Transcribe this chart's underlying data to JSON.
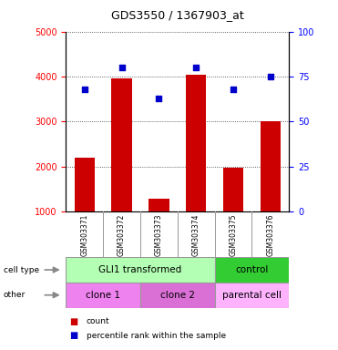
{
  "title": "GDS3550 / 1367903_at",
  "samples": [
    "GSM303371",
    "GSM303372",
    "GSM303373",
    "GSM303374",
    "GSM303375",
    "GSM303376"
  ],
  "counts": [
    2200,
    3950,
    1280,
    4050,
    1980,
    3000
  ],
  "percentile_pct": [
    68,
    80,
    63,
    80,
    68,
    75
  ],
  "ylim_left": [
    1000,
    5000
  ],
  "ylim_right": [
    0,
    100
  ],
  "yticks_left": [
    1000,
    2000,
    3000,
    4000,
    5000
  ],
  "yticks_right": [
    0,
    25,
    50,
    75,
    100
  ],
  "bar_color": "#cc0000",
  "dot_color": "#0000cc",
  "cell_type_labels": [
    "GLI1 transformed",
    "control"
  ],
  "cell_type_colors": [
    "#b3ffb3",
    "#33cc33"
  ],
  "other_labels": [
    "clone 1",
    "clone 2",
    "parental cell"
  ],
  "other_colors": [
    "#ee82ee",
    "#da70d6",
    "#ffb3ff"
  ],
  "label_row1": "cell type",
  "label_row2": "other",
  "legend_count": "count",
  "legend_pct": "percentile rank within the sample",
  "background_color": "#ffffff",
  "grid_color": "#333333",
  "bar_bottom": 1000,
  "sample_bg_color": "#cccccc",
  "sep_color": "#999999"
}
